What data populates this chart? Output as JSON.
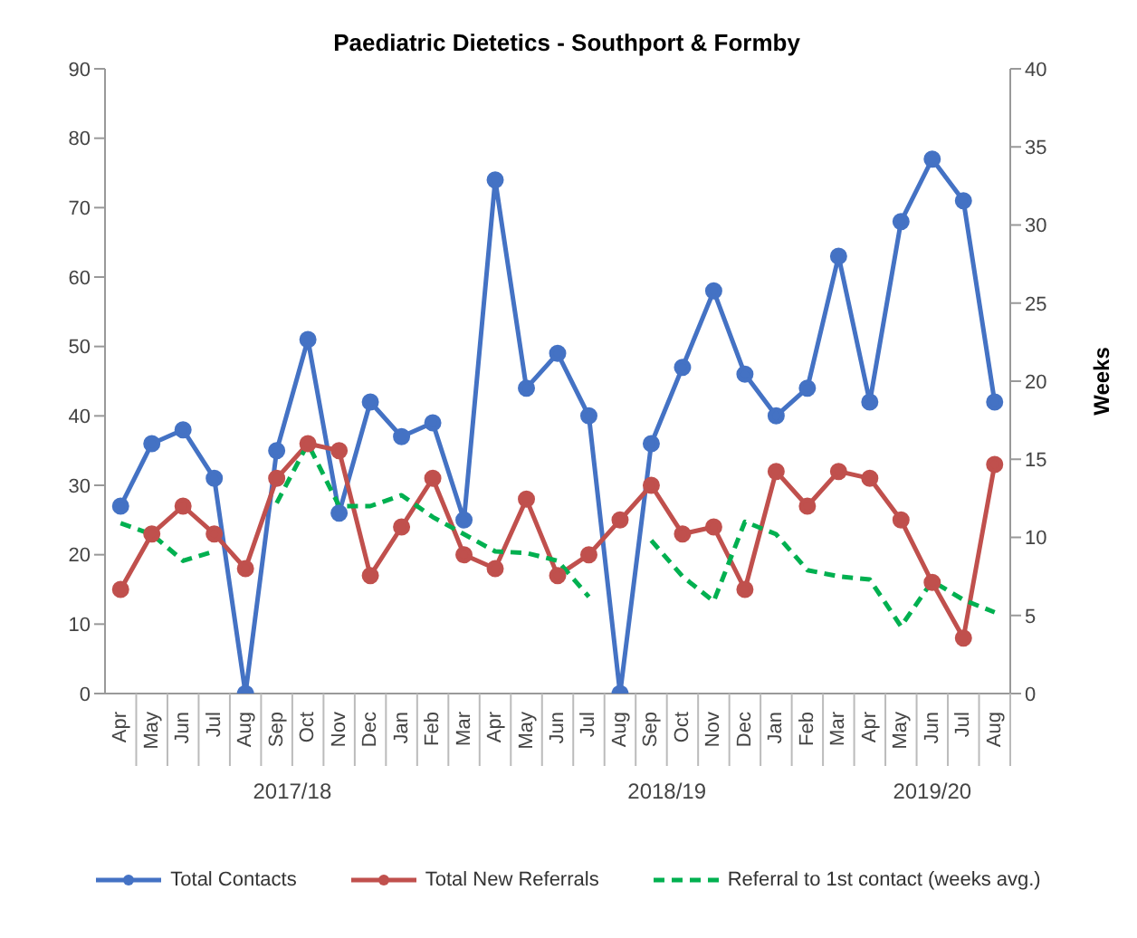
{
  "chart_data": {
    "type": "line",
    "title": "Paediatric Dietetics - Southport & Formby",
    "y2label": "Weeks",
    "categories": [
      "Apr",
      "May",
      "Jun",
      "Jul",
      "Aug",
      "Sep",
      "Oct",
      "Nov",
      "Dec",
      "Jan",
      "Feb",
      "Mar",
      "Apr",
      "May",
      "Jun",
      "Jul",
      "Aug",
      "Sep",
      "Oct",
      "Nov",
      "Dec",
      "Jan",
      "Feb",
      "Mar",
      "Apr",
      "May",
      "Jun",
      "Jul",
      "Aug"
    ],
    "series": [
      {
        "name": "Total Contacts",
        "color": "#4472c4",
        "marker": "circle",
        "line_style": "solid",
        "values": [
          27,
          36,
          38,
          31,
          0,
          35,
          51,
          26,
          42,
          37,
          39,
          25,
          74,
          44,
          49,
          40,
          0,
          36,
          47,
          58,
          46,
          40,
          44,
          63,
          42,
          68,
          77,
          71,
          42
        ]
      },
      {
        "name": "Total New Referrals",
        "color": "#c0504d",
        "marker": "circle",
        "line_style": "solid",
        "values": [
          15,
          23,
          27,
          23,
          18,
          31,
          36,
          35,
          17,
          24,
          31,
          20,
          18,
          28,
          17,
          20,
          25,
          30,
          23,
          24,
          15,
          32,
          27,
          32,
          31,
          25,
          16,
          8,
          33
        ]
      },
      {
        "name": "Referral to 1st contact (weeks avg.)",
        "color": "#00b050",
        "marker": "none",
        "line_style": "dashed",
        "axis": "y2",
        "values": [
          10.9,
          10.2,
          8.5,
          9.1,
          null,
          12.2,
          16,
          12,
          12,
          12.7,
          11.3,
          10.2,
          9.1,
          9,
          8.5,
          6.2,
          null,
          9.8,
          7.5,
          5.9,
          11,
          10.2,
          7.9,
          7.5,
          7.3,
          4.3,
          7.2,
          6,
          5.2
        ]
      }
    ],
    "ylim": [
      0,
      90
    ],
    "yticks": [
      0,
      10,
      20,
      30,
      40,
      50,
      60,
      70,
      80,
      90
    ],
    "y2lim": [
      0,
      40
    ],
    "y2ticks": [
      0,
      5,
      10,
      15,
      20,
      25,
      30,
      35,
      40
    ],
    "grid": false,
    "legend": "bottom",
    "annotations": [
      "2017/18",
      "2018/19",
      "2019/20"
    ]
  }
}
